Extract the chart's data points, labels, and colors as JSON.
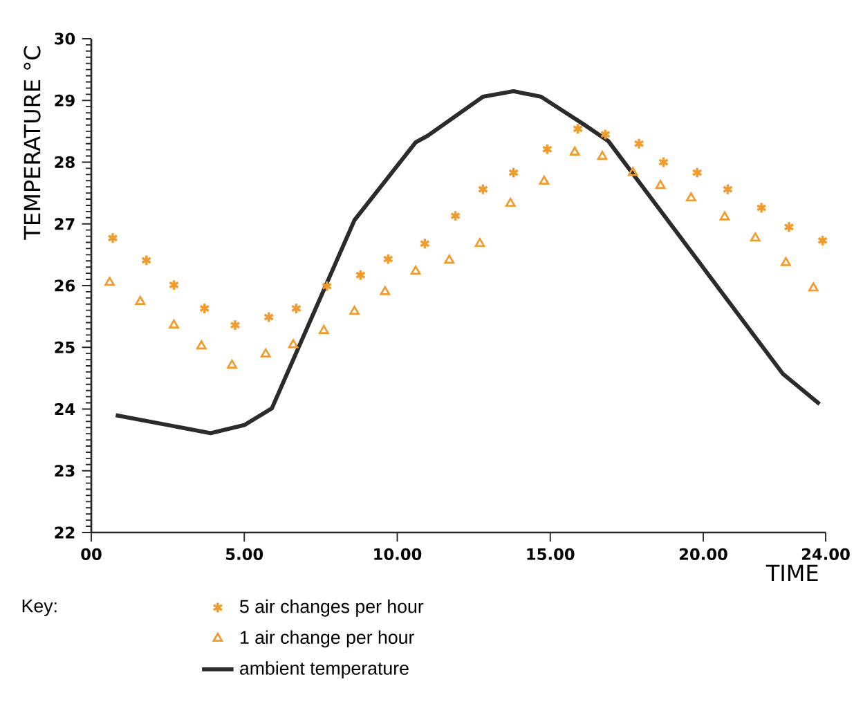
{
  "chart_data": {
    "type": "scatter",
    "xlabel": "TIME",
    "ylabel": "TEMPERATURE °C",
    "legend_title": "Key:",
    "legend": "bottom",
    "xlim": [
      0,
      24
    ],
    "ylim": [
      22,
      30
    ],
    "xticks": [
      {
        "value": 0,
        "label": "00"
      },
      {
        "value": 5,
        "label": "5.00"
      },
      {
        "value": 10,
        "label": "10.00"
      },
      {
        "value": 15,
        "label": "15.00"
      },
      {
        "value": 20,
        "label": "20.00"
      },
      {
        "value": 24,
        "label": "24.00"
      }
    ],
    "yticks": [
      22,
      23,
      24,
      25,
      26,
      27,
      28,
      29,
      30
    ],
    "series": [
      {
        "name": "5 air changes per hour",
        "marker": "cross",
        "color": "#f39a2c",
        "x": [
          0.7,
          1.8,
          2.7,
          3.7,
          4.7,
          5.8,
          6.7,
          7.7,
          8.8,
          9.7,
          10.9,
          11.9,
          12.8,
          13.8,
          14.9,
          15.9,
          16.8,
          17.9,
          18.7,
          19.8,
          20.8,
          21.9,
          22.8,
          23.9
        ],
        "values": [
          26.77,
          26.41,
          26.01,
          25.63,
          25.36,
          25.49,
          25.63,
          25.99,
          26.17,
          26.43,
          26.68,
          27.13,
          27.56,
          27.83,
          28.21,
          28.54,
          28.45,
          28.3,
          28.0,
          27.83,
          27.56,
          27.26,
          26.95,
          26.73
        ]
      },
      {
        "name": "1 air change per hour",
        "marker": "triangle",
        "color": "#f39a2c",
        "x": [
          0.6,
          1.6,
          2.7,
          3.6,
          4.6,
          5.7,
          6.6,
          7.6,
          8.6,
          9.6,
          10.6,
          11.7,
          12.7,
          13.7,
          14.8,
          15.8,
          16.7,
          17.7,
          18.6,
          19.6,
          20.7,
          21.7,
          22.7,
          23.6
        ],
        "values": [
          26.05,
          25.74,
          25.36,
          25.02,
          24.71,
          24.89,
          25.04,
          25.27,
          25.58,
          25.9,
          26.23,
          26.41,
          26.68,
          27.33,
          27.69,
          28.16,
          28.09,
          27.83,
          27.62,
          27.42,
          27.11,
          26.77,
          26.37,
          25.96
        ]
      },
      {
        "name": "ambient temperature",
        "type": "line",
        "marker": "none",
        "line_style": "solid",
        "color": "#2b2b2b",
        "x": [
          0.8,
          3.9,
          5.0,
          5.9,
          8.6,
          10.6,
          11.0,
          12.8,
          13.8,
          14.7,
          16.1,
          16.9,
          22.6,
          23.8
        ],
        "values": [
          23.9,
          23.61,
          23.74,
          24.01,
          27.06,
          28.32,
          28.43,
          29.06,
          29.15,
          29.06,
          28.61,
          28.34,
          24.57,
          24.08
        ]
      }
    ]
  }
}
